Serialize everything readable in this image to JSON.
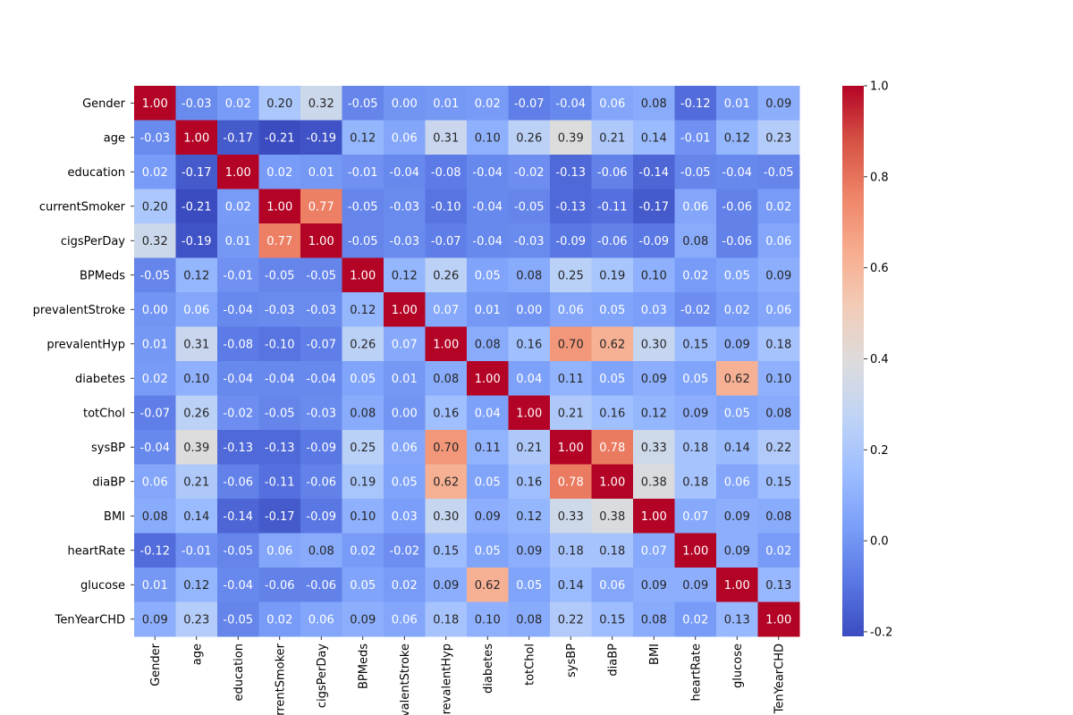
{
  "chart_data": {
    "type": "heatmap",
    "title": "",
    "colormap": "coolwarm",
    "value_range": [
      -0.21,
      1.0
    ],
    "colorbar_ticks": [
      "-0.2",
      "0.0",
      "0.2",
      "0.4",
      "0.6",
      "0.8",
      "1.0"
    ],
    "colorbar_tick_values": [
      -0.2,
      0.0,
      0.2,
      0.4,
      0.6,
      0.8,
      1.0
    ],
    "labels": [
      "Gender",
      "age",
      "education",
      "currentSmoker",
      "cigsPerDay",
      "BPMeds",
      "prevalentStroke",
      "prevalentHyp",
      "diabetes",
      "totChol",
      "sysBP",
      "diaBP",
      "BMI",
      "heartRate",
      "glucose",
      "TenYearCHD"
    ],
    "matrix": [
      [
        1.0,
        -0.03,
        0.02,
        0.2,
        0.32,
        -0.05,
        -0.0,
        0.01,
        0.02,
        -0.07,
        -0.04,
        0.06,
        0.08,
        -0.12,
        0.01,
        0.09
      ],
      [
        -0.03,
        1.0,
        -0.17,
        -0.21,
        -0.19,
        0.12,
        0.06,
        0.31,
        0.1,
        0.26,
        0.39,
        0.21,
        0.14,
        -0.01,
        0.12,
        0.23
      ],
      [
        0.02,
        -0.17,
        1.0,
        0.02,
        0.01,
        -0.01,
        -0.04,
        -0.08,
        -0.04,
        -0.02,
        -0.13,
        -0.06,
        -0.14,
        -0.05,
        -0.04,
        -0.05
      ],
      [
        0.2,
        -0.21,
        0.02,
        1.0,
        0.77,
        -0.05,
        -0.03,
        -0.1,
        -0.04,
        -0.05,
        -0.13,
        -0.11,
        -0.17,
        0.06,
        -0.06,
        0.02
      ],
      [
        0.32,
        -0.19,
        0.01,
        0.77,
        1.0,
        -0.05,
        -0.03,
        -0.07,
        -0.04,
        -0.03,
        -0.09,
        -0.06,
        -0.09,
        0.08,
        -0.06,
        0.06
      ],
      [
        -0.05,
        0.12,
        -0.01,
        -0.05,
        -0.05,
        1.0,
        0.12,
        0.26,
        0.05,
        0.08,
        0.25,
        0.19,
        0.1,
        0.02,
        0.05,
        0.09
      ],
      [
        -0.0,
        0.06,
        -0.04,
        -0.03,
        -0.03,
        0.12,
        1.0,
        0.07,
        0.01,
        0.0,
        0.06,
        0.05,
        0.03,
        -0.02,
        0.02,
        0.06
      ],
      [
        0.01,
        0.31,
        -0.08,
        -0.1,
        -0.07,
        0.26,
        0.07,
        1.0,
        0.08,
        0.16,
        0.7,
        0.62,
        0.3,
        0.15,
        0.09,
        0.18
      ],
      [
        0.02,
        0.1,
        -0.04,
        -0.04,
        -0.04,
        0.05,
        0.01,
        0.08,
        1.0,
        0.04,
        0.11,
        0.05,
        0.09,
        0.05,
        0.62,
        0.1
      ],
      [
        -0.07,
        0.26,
        -0.02,
        -0.05,
        -0.03,
        0.08,
        0.0,
        0.16,
        0.04,
        1.0,
        0.21,
        0.16,
        0.12,
        0.09,
        0.05,
        0.08
      ],
      [
        -0.04,
        0.39,
        -0.13,
        -0.13,
        -0.09,
        0.25,
        0.06,
        0.7,
        0.11,
        0.21,
        1.0,
        0.78,
        0.33,
        0.18,
        0.14,
        0.22
      ],
      [
        0.06,
        0.21,
        -0.06,
        -0.11,
        -0.06,
        0.19,
        0.05,
        0.62,
        0.05,
        0.16,
        0.78,
        1.0,
        0.38,
        0.18,
        0.06,
        0.15
      ],
      [
        0.08,
        0.14,
        -0.14,
        -0.17,
        -0.09,
        0.1,
        0.03,
        0.3,
        0.09,
        0.12,
        0.33,
        0.38,
        1.0,
        0.07,
        0.09,
        0.08
      ],
      [
        -0.12,
        -0.01,
        -0.05,
        0.06,
        0.08,
        0.02,
        -0.02,
        0.15,
        0.05,
        0.09,
        0.18,
        0.18,
        0.07,
        1.0,
        0.09,
        0.02
      ],
      [
        0.01,
        0.12,
        -0.04,
        -0.06,
        -0.06,
        0.05,
        0.02,
        0.09,
        0.62,
        0.05,
        0.14,
        0.06,
        0.09,
        0.09,
        1.0,
        0.13
      ],
      [
        0.09,
        0.23,
        -0.05,
        0.02,
        0.06,
        0.09,
        0.06,
        0.18,
        0.1,
        0.08,
        0.22,
        0.15,
        0.08,
        0.02,
        0.13,
        1.0
      ]
    ],
    "annotation_format": "0.00",
    "grid": false,
    "legend": "colorbar-right"
  }
}
